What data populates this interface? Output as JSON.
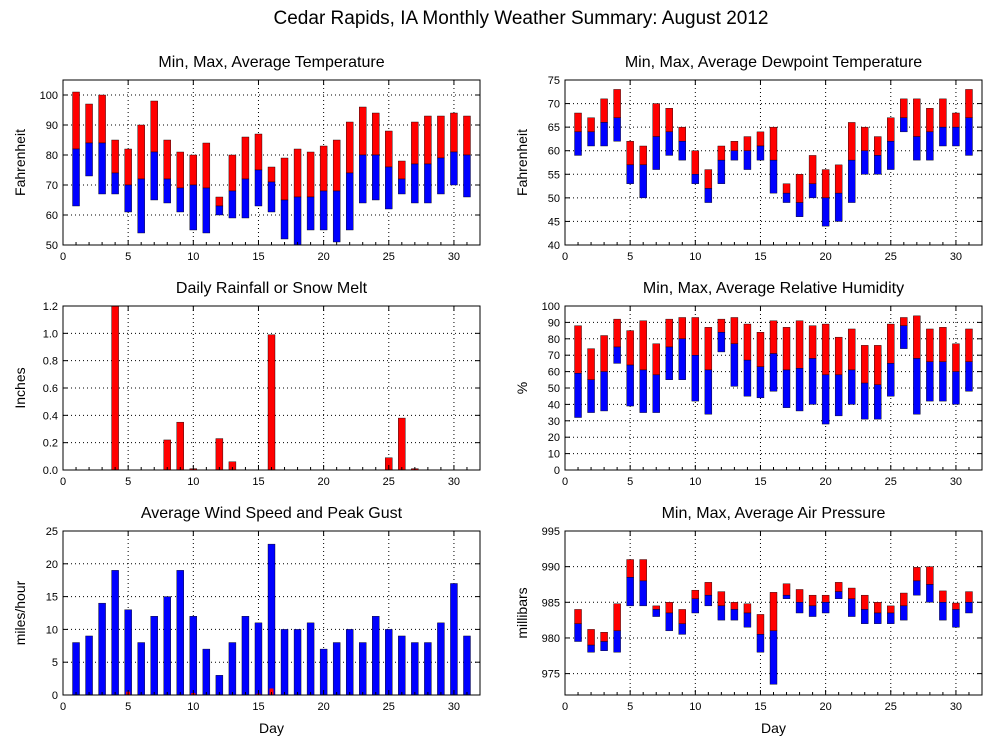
{
  "page": {
    "title": "Cedar Rapids, IA Monthly Weather Summary: August 2012"
  },
  "colors": {
    "red": "#ff0000",
    "blue": "#0000ff",
    "grid": "#000000"
  },
  "chart_data": [
    {
      "id": "temp",
      "type": "bar",
      "title": "Min, Max, Average Temperature",
      "xlabel": "",
      "ylabel": "Fahrenheit",
      "xlim": [
        0,
        32
      ],
      "ylim": [
        50,
        105
      ],
      "xticks": [
        0,
        5,
        10,
        15,
        20,
        25,
        30
      ],
      "yticks": [
        50,
        60,
        70,
        80,
        90,
        100
      ],
      "grid": true,
      "x": [
        1,
        2,
        3,
        4,
        5,
        6,
        7,
        8,
        9,
        10,
        11,
        12,
        13,
        14,
        15,
        16,
        17,
        18,
        19,
        20,
        21,
        22,
        23,
        24,
        25,
        26,
        27,
        28,
        29,
        30,
        31
      ],
      "series": [
        {
          "name": "min",
          "values": [
            63,
            73,
            67,
            67,
            61,
            54,
            65,
            64,
            61,
            55,
            54,
            60,
            59,
            59,
            63,
            61,
            52,
            50,
            55,
            55,
            51,
            55,
            64,
            65,
            62,
            67,
            64,
            64,
            67,
            70,
            66
          ]
        },
        {
          "name": "avg",
          "values": [
            82,
            84,
            84,
            74,
            70,
            72,
            81,
            72,
            69,
            70,
            69,
            63,
            68,
            72,
            75,
            71,
            65,
            66,
            66,
            68,
            68,
            74,
            80,
            80,
            76,
            72,
            77,
            77,
            79,
            81,
            80
          ]
        },
        {
          "name": "max",
          "values": [
            101,
            97,
            100,
            85,
            82,
            90,
            98,
            85,
            81,
            80,
            84,
            66,
            80,
            86,
            87,
            76,
            79,
            82,
            81,
            83,
            85,
            91,
            96,
            94,
            88,
            78,
            91,
            93,
            93,
            94,
            93
          ]
        }
      ]
    },
    {
      "id": "dew",
      "type": "bar",
      "title": "Min, Max, Average Dewpoint Temperature",
      "xlabel": "",
      "ylabel": "Fahrenheit",
      "xlim": [
        0,
        32
      ],
      "ylim": [
        40,
        75
      ],
      "xticks": [
        0,
        5,
        10,
        15,
        20,
        25,
        30
      ],
      "yticks": [
        40,
        45,
        50,
        55,
        60,
        65,
        70,
        75
      ],
      "grid": true,
      "x": [
        1,
        2,
        3,
        4,
        5,
        6,
        7,
        8,
        9,
        10,
        11,
        12,
        13,
        14,
        15,
        16,
        17,
        18,
        19,
        20,
        21,
        22,
        23,
        24,
        25,
        26,
        27,
        28,
        29,
        30,
        31
      ],
      "series": [
        {
          "name": "min",
          "values": [
            59,
            61,
            61,
            62,
            53,
            50,
            56,
            59,
            58,
            53,
            49,
            53,
            58,
            56,
            58,
            51,
            49,
            46,
            50,
            44,
            45,
            49,
            55,
            55,
            56,
            64,
            58,
            58,
            61,
            61,
            59
          ]
        },
        {
          "name": "avg",
          "values": [
            64,
            64,
            66,
            67,
            57,
            57,
            63,
            64,
            62,
            55,
            52,
            58,
            60,
            60,
            61,
            58,
            51,
            49,
            53,
            50,
            51,
            58,
            60,
            59,
            62,
            67,
            63,
            64,
            65,
            65,
            67
          ]
        },
        {
          "name": "max",
          "values": [
            68,
            67,
            71,
            73,
            62,
            61,
            70,
            69,
            65,
            60,
            56,
            61,
            62,
            63,
            64,
            65,
            53,
            55,
            59,
            56,
            57,
            66,
            65,
            63,
            67,
            71,
            71,
            69,
            71,
            68,
            73
          ]
        }
      ]
    },
    {
      "id": "rain",
      "type": "bar",
      "title": "Daily Rainfall or Snow Melt",
      "xlabel": "",
      "ylabel": "Inches",
      "xlim": [
        0,
        32
      ],
      "ylim": [
        0,
        1.2
      ],
      "xticks": [
        0,
        5,
        10,
        15,
        20,
        25,
        30
      ],
      "yticks": [
        0.0,
        0.2,
        0.4,
        0.6,
        0.8,
        1.0,
        1.2
      ],
      "ytick_labels": [
        "0.0",
        "0.2",
        "0.4",
        "0.6",
        "0.8",
        "1.0",
        "1.2"
      ],
      "grid": true,
      "x": [
        1,
        2,
        3,
        4,
        5,
        6,
        7,
        8,
        9,
        10,
        11,
        12,
        13,
        14,
        15,
        16,
        17,
        18,
        19,
        20,
        21,
        22,
        23,
        24,
        25,
        26,
        27,
        28,
        29,
        30,
        31
      ],
      "series": [
        {
          "name": "rain",
          "values": [
            0,
            0,
            0,
            1.2,
            0,
            0,
            0,
            0.22,
            0.35,
            0.01,
            0,
            0.23,
            0.06,
            0,
            0,
            0.99,
            0,
            0,
            0,
            0,
            0,
            0,
            0,
            0,
            0.09,
            0.38,
            0.01,
            0,
            0,
            0,
            0
          ]
        }
      ]
    },
    {
      "id": "rh",
      "type": "bar",
      "title": "Min, Max, Average Relative Humidity",
      "xlabel": "",
      "ylabel": "%",
      "xlim": [
        0,
        32
      ],
      "ylim": [
        0,
        100
      ],
      "xticks": [
        0,
        5,
        10,
        15,
        20,
        25,
        30
      ],
      "yticks": [
        0,
        10,
        20,
        30,
        40,
        50,
        60,
        70,
        80,
        90,
        100
      ],
      "grid": true,
      "x": [
        1,
        2,
        3,
        4,
        5,
        6,
        7,
        8,
        9,
        10,
        11,
        12,
        13,
        14,
        15,
        16,
        17,
        18,
        19,
        20,
        21,
        22,
        23,
        24,
        25,
        26,
        27,
        28,
        29,
        30,
        31
      ],
      "series": [
        {
          "name": "min",
          "values": [
            32,
            35,
            36,
            65,
            39,
            35,
            35,
            55,
            55,
            42,
            34,
            72,
            51,
            45,
            44,
            48,
            38,
            36,
            40,
            28,
            33,
            40,
            31,
            31,
            45,
            74,
            34,
            42,
            42,
            40,
            48
          ]
        },
        {
          "name": "avg",
          "values": [
            59,
            55,
            60,
            75,
            64,
            61,
            58,
            75,
            80,
            70,
            61,
            84,
            77,
            67,
            63,
            71,
            61,
            62,
            68,
            58,
            58,
            61,
            53,
            52,
            65,
            88,
            68,
            66,
            66,
            60,
            66
          ]
        },
        {
          "name": "max",
          "values": [
            88,
            74,
            82,
            92,
            85,
            91,
            77,
            92,
            93,
            93,
            87,
            92,
            93,
            89,
            84,
            91,
            87,
            91,
            88,
            89,
            81,
            86,
            76,
            76,
            89,
            93,
            94,
            86,
            87,
            77,
            86
          ]
        }
      ]
    },
    {
      "id": "wind",
      "type": "bar",
      "title": "Average Wind Speed and Peak Gust",
      "xlabel": "Day",
      "ylabel": "miles/hour",
      "xlim": [
        0,
        32
      ],
      "ylim": [
        0,
        25
      ],
      "xticks": [
        0,
        5,
        10,
        15,
        20,
        25,
        30
      ],
      "yticks": [
        0,
        5,
        10,
        15,
        20,
        25
      ],
      "grid": true,
      "x": [
        1,
        2,
        3,
        4,
        5,
        6,
        7,
        8,
        9,
        10,
        11,
        12,
        13,
        14,
        15,
        16,
        17,
        18,
        19,
        20,
        21,
        22,
        23,
        24,
        25,
        26,
        27,
        28,
        29,
        30,
        31
      ],
      "series": [
        {
          "name": "average",
          "values": [
            8,
            9,
            14,
            19,
            13,
            8,
            12,
            15,
            19,
            12,
            7,
            3,
            8,
            12,
            11,
            23,
            10,
            10,
            11,
            7,
            8,
            10,
            8,
            12,
            10,
            9,
            8,
            8,
            11,
            17,
            9
          ]
        },
        {
          "name": "gust",
          "values": [
            0,
            0,
            0,
            0,
            0.5,
            0,
            0,
            0,
            0,
            0.3,
            0,
            0,
            0,
            0,
            0.2,
            1,
            0,
            0,
            0,
            0,
            0,
            0,
            0,
            0,
            0,
            0,
            0,
            0,
            0,
            0,
            0
          ]
        }
      ]
    },
    {
      "id": "pres",
      "type": "bar",
      "title": "Min, Max, Average Air Pressure",
      "xlabel": "Day",
      "ylabel": "millibars",
      "xlim": [
        0,
        32
      ],
      "ylim": [
        972,
        995
      ],
      "xticks": [
        0,
        5,
        10,
        15,
        20,
        25,
        30
      ],
      "yticks": [
        975,
        980,
        985,
        990,
        995
      ],
      "grid": true,
      "x": [
        1,
        2,
        3,
        4,
        5,
        6,
        7,
        8,
        9,
        10,
        11,
        12,
        13,
        14,
        15,
        16,
        17,
        18,
        19,
        20,
        21,
        22,
        23,
        24,
        25,
        26,
        27,
        28,
        29,
        30,
        31
      ],
      "series": [
        {
          "name": "min",
          "values": [
            979.5,
            978,
            978.2,
            978,
            984.5,
            984.5,
            983,
            981,
            980.5,
            983.5,
            984.5,
            982.5,
            982.5,
            981.5,
            978,
            973.5,
            985.5,
            983.5,
            983,
            983.5,
            985.5,
            983,
            982,
            982,
            982,
            982.5,
            986,
            985,
            982.5,
            981.5,
            983.5
          ]
        },
        {
          "name": "avg",
          "values": [
            982,
            979,
            979.5,
            981,
            988.5,
            988,
            984,
            983.5,
            982,
            985.5,
            986,
            984.5,
            984,
            983.5,
            980.5,
            981,
            986,
            985,
            984.5,
            985,
            986.5,
            985.5,
            984,
            983.5,
            983.5,
            984.5,
            988,
            987.5,
            985,
            984,
            985
          ]
        },
        {
          "name": "max",
          "values": [
            984,
            981.2,
            980.8,
            984.8,
            991,
            991,
            984.5,
            985,
            984,
            986.7,
            987.8,
            986.5,
            985,
            984.8,
            983.3,
            986.4,
            987.6,
            986.8,
            986,
            986,
            987.8,
            987,
            986,
            985,
            984.5,
            986.3,
            989.9,
            990,
            986.6,
            984.9,
            986.5
          ]
        }
      ]
    }
  ]
}
